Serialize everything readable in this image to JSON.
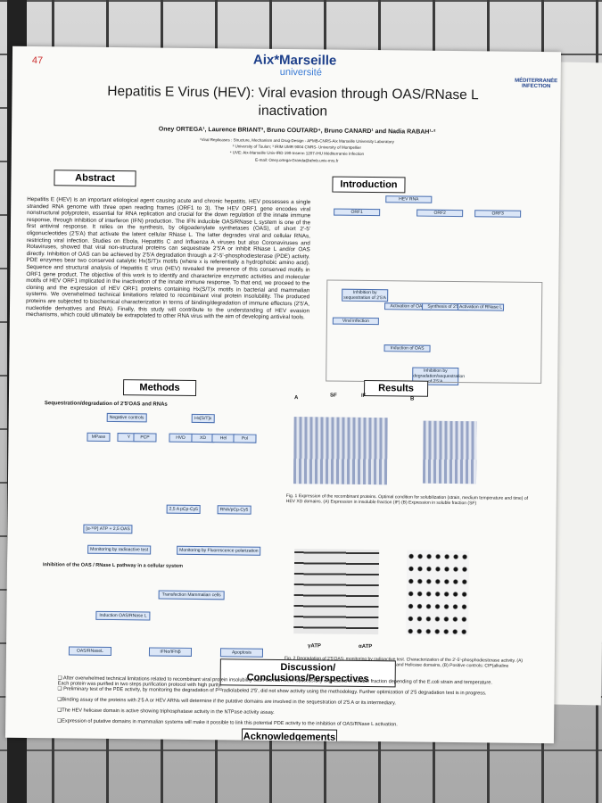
{
  "header": {
    "number": "47",
    "logo": "Aix*Marseille",
    "logo_sub": "université",
    "partner": "MÉDITERRANÉE INFECTION",
    "title": "Hepatitis E Virus (HEV): Viral evasion through OAS/RNase L inactivation",
    "authors": "Oney ORTEGA¹, Laurence BRIANT³, Bruno COUTARD⁴, Bruno CANARD¹ and Nadia RABAH¹·²",
    "affiliations": [
      "¹Viral Replicases : Structure, Mechanism and Drug-Design - AFMB-CNRS-Aix Marseille University Laboratory",
      "² University of Toulon; ³ IRIM UMR 9004 CNRS- University of Montpellier",
      "⁴ UVE: Aix-Marseille Univ-IRD 190-Inserm 1207-IHU Méditerranée Infection"
    ],
    "email": "E-mail: Oney.ortega-Granda@afmb.univ-mrs.fr"
  },
  "abstract": {
    "heading": "Abstract",
    "text": "Hepatitis E (HEV) is an important etiological agent causing acute and chronic hepatitis. HEV possesses a single stranded RNA genome with three open reading frames (ORF1 to 3). The HEV ORF1 gene encodes viral nonstructural polyprotein, essential for RNA replication and crucial for the down regulation of the innate immune response, through inhibition of interferon (IFN) production. The IFN inducible OAS/RNase L system is one of the first antiviral response. It relies on the synthesis, by oligoadenylate synthetases (OAS), of short 2'-5' oligonucleotides (2'5'A) that activate the latent cellular RNase L. The latter degrades viral and cellular RNAs, restricting viral infection. Studies on Ebola, Hepatitis C and Influenza A viruses but also Coronaviruses and Rotaviruses, showed that viral non-structural proteins can sequestrate 2'5'A or inhibit RNase L and/or OAS directly. Inhibition of OAS can be achieved by 2'5'A degradation through a 2'-5'-phosphodiesterase (PDE) activity. PDE enzymes bear two conserved catalytic Hx(S/T)x motifs (where x is referentially a hydrophobic amino acid). Sequence and structural analysis of Hepatitis E virus (HEV) revealed the presence of this conserved motifs in ORF1 gene product. The objective of this work is to identify and characterize enzymatic activities and molecular motifs of HEV ORF1 implicated in the inactivation of the innate immune response. To that end, we proceed to the cloning and the expression of HEV ORF1 proteins containing Hx(S/T)x motifs in bacterial and mammalian systems. We overwhelmed technical limitations related to recombinant viral protein insolubility. The produced proteins are subjected to biochemical characterization in terms of binding/degradation of immune effectors (2'5'A, nucleotide derivatives and RNA). Finally, this study will contribute to the understanding of HEV evasion mechanisms, which could ultimately be extrapolated to other RNA virus with the aim of developing antiviral tools."
  },
  "introduction": {
    "heading": "Introduction",
    "labels": [
      "HEV RNA",
      "ORF1",
      "ORF2",
      "ORF3",
      "Inhibition by sequestration of 2'5'A",
      "Inhibition by degradation/sequestration of 2'5'A",
      "Viral infection",
      "Activation of OAS",
      "Synthesis of 2'5'A",
      "Activation of RNase L",
      "Induction of OAS"
    ]
  },
  "methods": {
    "heading": "Methods",
    "subtitle": "Sequestration/degradation of 2'5'OAS and RNAs",
    "labels": [
      "Negative controls",
      "MPase",
      "Y",
      "PCP",
      "Hx[S/T]x",
      "HVD",
      "XD",
      "Hel",
      "Pol",
      "[α-³²P] ATP + 2,5 OAS",
      "2,5 A pCp-Cy5",
      "RNA/pCp-Cy5",
      "Monitoring by radioactive test",
      "Monitoring by Fluorescence polarization"
    ],
    "subtitle2": "Inhibition of the OAS / RNase L pathway in a cellular system",
    "labels2": [
      "Transfection Mammalian cells",
      "Induction OAS/RNase L",
      "OAS/RNaseL",
      "IFNα/IFNβ",
      "Apoptosis"
    ]
  },
  "results": {
    "heading": "Results",
    "fig1_caption": "Fig. 1 Expression of the recombinant proteins. Optimal condition for solubilization (strain, medium temperature and time) of HEV XD domains. (A) Expression in insoluble fraction (IF) (B) Expression in soluble fraction (SF)",
    "fig2_caption": "Fig. 2 Degradation of 2'5'OAS: monitoring by radioactive test. Characterization of the 2'-5'-phosphodiesterase activity. (A) Determination of NTPase activity present in Polymerase and Helicase domains, (B) Positive controls: CIP(alkaline phosphatase),NS3 (NS3 of dengue virus).",
    "labels": [
      "A",
      "B",
      "SF",
      "IF",
      "γATP",
      "αATP"
    ]
  },
  "discussion": {
    "heading": "Discussion/ Conclusions/Perspectives",
    "bullets": [
      "❑ After overwhelmed technical limitations related to recombinant viral protein insolubility each domain were successfully expressed in soluble fraction depending of the E.coli strain and temperature. Each protein was purified in two steps purification protocol with high purity.",
      "❑ Preliminary test of the PDE activity, by monitoring the degradation of P³²radiolabeled 2'5', did not show activity using the methodology. Further optimization of 2'5 degradation test is in progress.",
      "❑Binding assay of the proteins with 2'5 A or HEV ARNs will determine if the putative domains are involved in the sequestration of 2'5 A or its intermediary.",
      "❑The HEV helicase domain is active showing triphosphatase activity in the NTPase activity assay.",
      "❑Expression of putative domains in mammalian systems will make it possible to link this potential PDE activity to the inhibition of OAS/RNase L activation."
    ]
  },
  "acknowledgements": {
    "heading": "Acknowledgements"
  }
}
